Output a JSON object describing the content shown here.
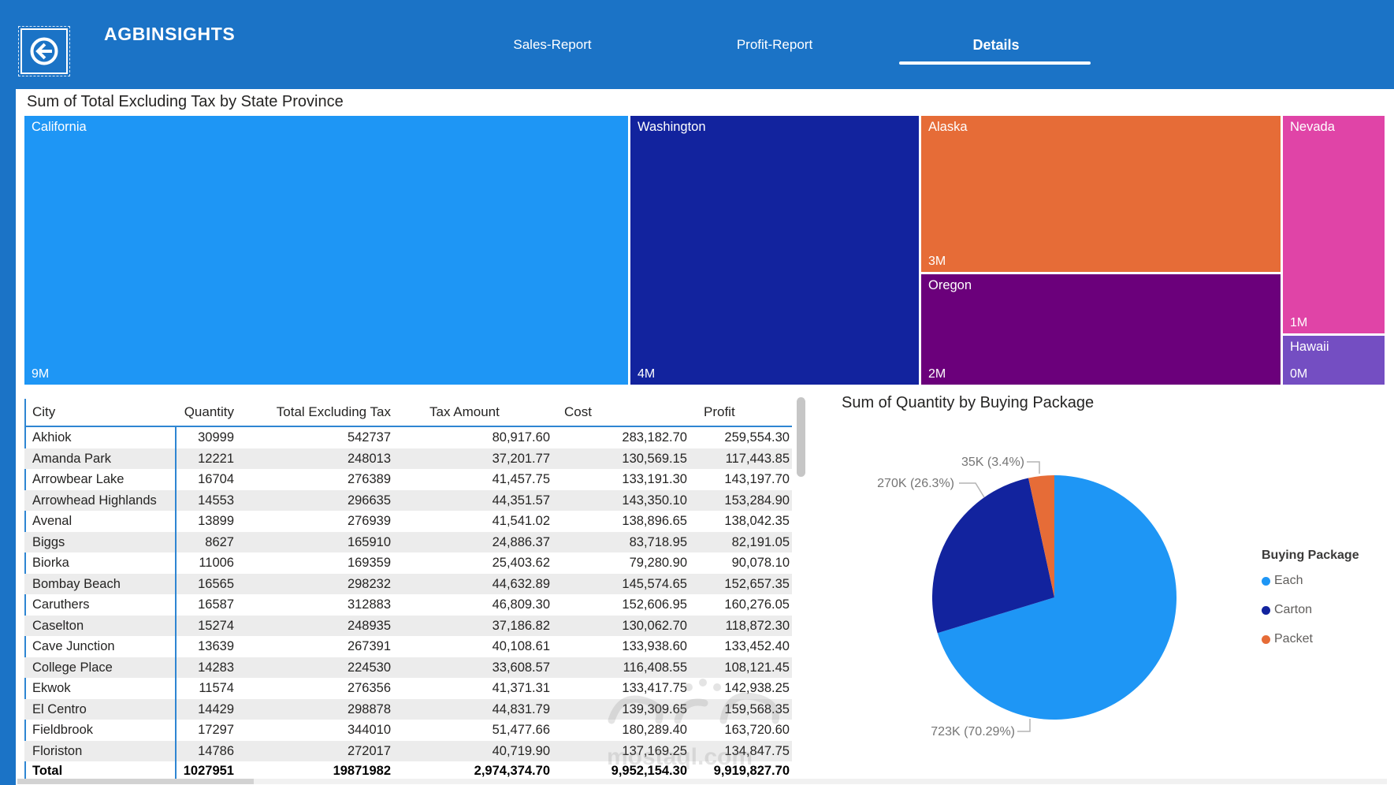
{
  "header": {
    "brand": "AGBINSIGHTS",
    "tabs": [
      {
        "label": "Sales-Report",
        "active": false
      },
      {
        "label": "Profit-Report",
        "active": false
      },
      {
        "label": "Details",
        "active": true
      }
    ],
    "colors": {
      "background": "#1B73C6",
      "tab_text": "#FFFFFF"
    }
  },
  "treemap": {
    "title": "Sum of Total Excluding Tax by State Province",
    "blocks": [
      {
        "name": "California",
        "value": "9M",
        "color": "#1E96F5"
      },
      {
        "name": "Washington",
        "value": "4M",
        "color": "#12239E"
      },
      {
        "name": "Alaska",
        "value": "3M",
        "color": "#E66C37"
      },
      {
        "name": "Oregon",
        "value": "2M",
        "color": "#6B007B"
      },
      {
        "name": "Nevada",
        "value": "1M",
        "color": "#E044A7"
      },
      {
        "name": "Hawaii",
        "value": "0M",
        "color": "#744EC2"
      }
    ]
  },
  "table": {
    "columns": [
      "City",
      "Quantity",
      "Total Excluding Tax",
      "Tax Amount",
      "Cost",
      "Profit"
    ],
    "rows": [
      [
        "Akhiok",
        "30999",
        "542737",
        "80,917.60",
        "283,182.70",
        "259,554.30"
      ],
      [
        "Amanda Park",
        "12221",
        "248013",
        "37,201.77",
        "130,569.15",
        "117,443.85"
      ],
      [
        "Arrowbear Lake",
        "16704",
        "276389",
        "41,457.75",
        "133,191.30",
        "143,197.70"
      ],
      [
        "Arrowhead Highlands",
        "14553",
        "296635",
        "44,351.57",
        "143,350.10",
        "153,284.90"
      ],
      [
        "Avenal",
        "13899",
        "276939",
        "41,541.02",
        "138,896.65",
        "138,042.35"
      ],
      [
        "Biggs",
        "8627",
        "165910",
        "24,886.37",
        "83,718.95",
        "82,191.05"
      ],
      [
        "Biorka",
        "11006",
        "169359",
        "25,403.62",
        "79,280.90",
        "90,078.10"
      ],
      [
        "Bombay Beach",
        "16565",
        "298232",
        "44,632.89",
        "145,574.65",
        "152,657.35"
      ],
      [
        "Caruthers",
        "16587",
        "312883",
        "46,809.30",
        "152,606.95",
        "160,276.05"
      ],
      [
        "Caselton",
        "15274",
        "248935",
        "37,186.82",
        "130,062.70",
        "118,872.30"
      ],
      [
        "Cave Junction",
        "13639",
        "267391",
        "40,108.61",
        "133,938.60",
        "133,452.40"
      ],
      [
        "College Place",
        "14283",
        "224530",
        "33,608.57",
        "116,408.55",
        "108,121.45"
      ],
      [
        "Ekwok",
        "11574",
        "276356",
        "41,371.31",
        "133,417.75",
        "142,938.25"
      ],
      [
        "El Centro",
        "14429",
        "298878",
        "44,831.79",
        "139,309.65",
        "159,568.35"
      ],
      [
        "Fieldbrook",
        "17297",
        "344010",
        "51,477.66",
        "180,289.40",
        "163,720.60"
      ],
      [
        "Floriston",
        "14786",
        "272017",
        "40,719.90",
        "137,169.25",
        "134,847.75"
      ]
    ],
    "total": [
      "Total",
      "1027951",
      "19871982",
      "2,974,374.70",
      "9,952,154.30",
      "9,919,827.70"
    ]
  },
  "pie": {
    "title": "Sum of Quantity by Buying Package",
    "legend_title": "Buying Package",
    "labels": {
      "packet": "35K (3.4%)",
      "carton": "270K (26.3%)",
      "each": "723K (70.29%)"
    }
  },
  "chart_data": [
    {
      "type": "treemap",
      "title": "Sum of Total Excluding Tax by State Province",
      "categories": [
        "California",
        "Washington",
        "Alaska",
        "Oregon",
        "Nevada",
        "Hawaii"
      ],
      "values": [
        9000000,
        4000000,
        3000000,
        2000000,
        1000000,
        400000
      ],
      "value_labels": [
        "9M",
        "4M",
        "3M",
        "2M",
        "1M",
        "0M"
      ],
      "colors": [
        "#1E96F5",
        "#12239E",
        "#E66C37",
        "#6B007B",
        "#E044A7",
        "#744EC2"
      ]
    },
    {
      "type": "pie",
      "title": "Sum of Quantity by Buying Package",
      "legend_position": "right",
      "slices": [
        {
          "name": "Each",
          "value": 723000,
          "pct": 70.29,
          "label": "723K (70.29%)",
          "color": "#1E96F5"
        },
        {
          "name": "Carton",
          "value": 270000,
          "pct": 26.3,
          "label": "270K (26.3%)",
          "color": "#12239E"
        },
        {
          "name": "Packet",
          "value": 35000,
          "pct": 3.41,
          "label": "35K (3.4%)",
          "color": "#E66C37"
        }
      ]
    }
  ],
  "watermark": {
    "text": "mostaql.com"
  }
}
